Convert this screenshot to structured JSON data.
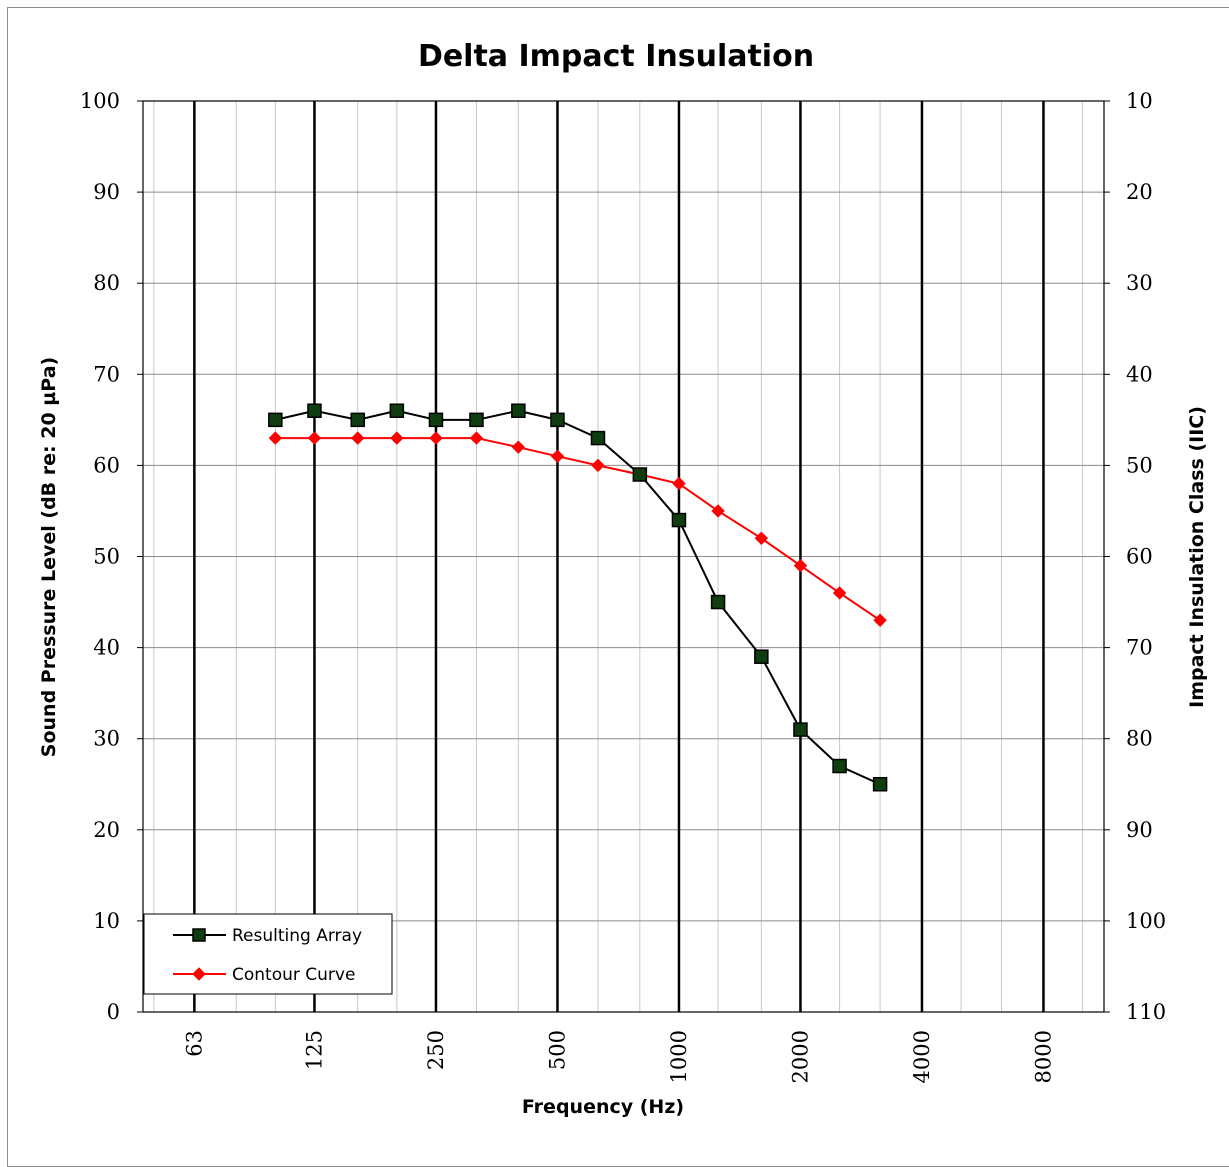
{
  "chart_data": {
    "type": "line",
    "title": "Delta Impact Insulation",
    "xlabel": "Frequency (Hz)",
    "ylabel": "Sound Pressure Level (dB re: 20 µPa)",
    "y2label": "Impact Insulation Class (IIC)",
    "x_scale": "log",
    "x_tick_labels": [
      "63",
      "125",
      "250",
      "500",
      "1000",
      "2000",
      "4000",
      "8000"
    ],
    "x_ticks": [
      63,
      125,
      250,
      500,
      1000,
      2000,
      4000,
      8000
    ],
    "ylim": [
      0,
      100
    ],
    "y_ticks": [
      0,
      10,
      20,
      30,
      40,
      50,
      60,
      70,
      80,
      90,
      100
    ],
    "y2_ticks": [
      "110",
      "100",
      "90",
      "80",
      "70",
      "60",
      "50",
      "40",
      "30",
      "20",
      "10"
    ],
    "x": [
      100,
      125,
      160,
      200,
      250,
      315,
      400,
      500,
      630,
      800,
      1000,
      1250,
      1600,
      2000,
      2500,
      3150
    ],
    "series": [
      {
        "name": "Resulting Array",
        "color": "#000000",
        "marker_fill": "#0f3d0f",
        "marker": "square",
        "values": [
          65,
          66,
          65,
          66,
          65,
          65,
          66,
          65,
          63,
          59,
          54,
          45,
          39,
          31,
          27,
          25
        ]
      },
      {
        "name": "Contour Curve",
        "color": "#ff0000",
        "marker_fill": "#ff0000",
        "marker": "diamond",
        "values": [
          63,
          63,
          63,
          63,
          63,
          63,
          62,
          61,
          60,
          59,
          58,
          55,
          52,
          49,
          46,
          43
        ]
      }
    ],
    "grid": true,
    "legend_position": "bottom-left"
  }
}
